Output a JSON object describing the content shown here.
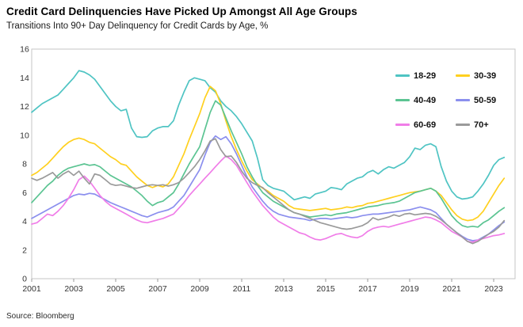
{
  "header": {
    "title": "Credit Card Delinquencies Have Picked Up Amongst All Age Groups",
    "subtitle": "Transitions Into 90+ Day Delinquency for Credit Cards by Age, %"
  },
  "source": "Source: Bloomberg",
  "chart_data": {
    "type": "line",
    "title": "Credit Card Delinquencies Have Picked Up Amongst All Age Groups",
    "subtitle": "Transitions Into 90+ Day Delinquency for Credit Cards by Age, %",
    "xlabel": "",
    "ylabel": "%",
    "x_start": 2001,
    "x_step": 0.25,
    "x_end": 2023.5,
    "xlim": [
      2001,
      2024
    ],
    "ylim": [
      0,
      16
    ],
    "y_ticks": [
      0,
      2,
      4,
      6,
      8,
      10,
      12,
      14,
      16
    ],
    "x_tick_labels": [
      2001,
      2003,
      2005,
      2007,
      2009,
      2011,
      2013,
      2015,
      2017,
      2019,
      2021,
      2023
    ],
    "grid": false,
    "legend_position": "top-right",
    "series": [
      {
        "name": "18-29",
        "color": "#4FC4C3",
        "values": [
          11.6,
          11.9,
          12.2,
          12.4,
          12.6,
          12.8,
          13.2,
          13.6,
          14.0,
          14.5,
          14.4,
          14.2,
          13.9,
          13.4,
          12.9,
          12.4,
          12.0,
          11.7,
          11.8,
          10.5,
          9.9,
          9.85,
          9.9,
          10.3,
          10.5,
          10.6,
          10.6,
          11.0,
          12.1,
          13.0,
          13.8,
          14.0,
          13.9,
          13.8,
          13.3,
          13.0,
          12.4,
          12.0,
          11.7,
          11.3,
          10.8,
          10.2,
          9.6,
          8.4,
          6.9,
          6.5,
          6.3,
          6.2,
          6.1,
          5.8,
          5.5,
          5.6,
          5.7,
          5.6,
          5.9,
          6.0,
          6.1,
          6.35,
          6.3,
          6.2,
          6.6,
          6.8,
          7.0,
          7.1,
          7.4,
          7.55,
          7.3,
          7.6,
          7.8,
          7.7,
          7.9,
          8.1,
          8.5,
          9.1,
          9.0,
          9.3,
          9.4,
          9.2,
          7.8,
          6.8,
          6.1,
          5.7,
          5.55,
          5.6,
          5.7,
          6.1,
          6.6,
          7.2,
          7.9,
          8.3,
          8.45
        ]
      },
      {
        "name": "30-39",
        "color": "#FFD01F",
        "values": [
          7.2,
          7.4,
          7.7,
          8.0,
          8.4,
          8.8,
          9.2,
          9.5,
          9.7,
          9.8,
          9.7,
          9.5,
          9.4,
          9.1,
          8.8,
          8.5,
          8.3,
          8.0,
          7.9,
          7.5,
          7.1,
          6.8,
          6.5,
          6.35,
          6.5,
          6.4,
          6.6,
          7.1,
          7.9,
          8.7,
          9.7,
          10.6,
          11.5,
          12.6,
          13.4,
          13.1,
          12.2,
          11.0,
          9.9,
          9.0,
          8.2,
          7.5,
          6.9,
          6.6,
          6.3,
          6.1,
          5.8,
          5.6,
          5.4,
          5.1,
          4.9,
          4.85,
          4.8,
          4.75,
          4.8,
          4.85,
          4.9,
          4.8,
          4.85,
          4.9,
          5.0,
          4.95,
          5.05,
          5.1,
          5.25,
          5.3,
          5.4,
          5.5,
          5.6,
          5.7,
          5.8,
          5.9,
          6.0,
          6.05,
          6.1,
          6.2,
          6.3,
          6.1,
          5.8,
          5.3,
          4.8,
          4.4,
          4.15,
          4.05,
          4.1,
          4.3,
          4.7,
          5.3,
          5.9,
          6.5,
          7.0
        ]
      },
      {
        "name": "40-49",
        "color": "#5BC492",
        "values": [
          5.3,
          5.7,
          6.1,
          6.5,
          6.8,
          7.2,
          7.5,
          7.7,
          7.8,
          7.9,
          8.0,
          7.9,
          7.95,
          7.8,
          7.5,
          7.2,
          7.0,
          6.8,
          6.6,
          6.4,
          6.1,
          5.8,
          5.4,
          5.1,
          5.3,
          5.4,
          5.7,
          6.0,
          6.6,
          7.3,
          8.0,
          8.6,
          9.2,
          10.4,
          11.6,
          12.4,
          12.1,
          11.2,
          10.3,
          9.5,
          8.7,
          7.8,
          7.1,
          6.5,
          6.0,
          5.7,
          5.4,
          5.2,
          5.0,
          4.8,
          4.6,
          4.5,
          4.4,
          4.3,
          4.35,
          4.4,
          4.45,
          4.4,
          4.5,
          4.55,
          4.6,
          4.7,
          4.8,
          4.9,
          5.0,
          5.05,
          5.1,
          5.2,
          5.25,
          5.3,
          5.4,
          5.6,
          5.8,
          6.0,
          6.1,
          6.2,
          6.3,
          6.1,
          5.6,
          5.0,
          4.4,
          4.0,
          3.7,
          3.6,
          3.65,
          3.6,
          3.9,
          4.1,
          4.4,
          4.7,
          4.95
        ]
      },
      {
        "name": "50-59",
        "color": "#8B8FEE",
        "values": [
          4.2,
          4.4,
          4.6,
          4.8,
          5.0,
          5.2,
          5.4,
          5.6,
          5.8,
          5.9,
          5.85,
          5.95,
          5.9,
          5.7,
          5.5,
          5.3,
          5.15,
          5.0,
          4.85,
          4.7,
          4.55,
          4.4,
          4.3,
          4.45,
          4.6,
          4.7,
          4.8,
          5.0,
          5.4,
          5.8,
          6.4,
          7.0,
          7.6,
          8.6,
          9.5,
          9.95,
          9.7,
          9.9,
          9.4,
          8.7,
          7.9,
          7.1,
          6.4,
          5.9,
          5.4,
          5.0,
          4.7,
          4.5,
          4.4,
          4.3,
          4.25,
          4.2,
          4.15,
          4.05,
          4.15,
          4.2,
          4.2,
          4.15,
          4.2,
          4.25,
          4.3,
          4.25,
          4.3,
          4.4,
          4.45,
          4.5,
          4.5,
          4.55,
          4.6,
          4.65,
          4.7,
          4.75,
          4.8,
          4.9,
          5.0,
          4.9,
          4.8,
          4.6,
          4.2,
          3.8,
          3.5,
          3.2,
          2.95,
          2.75,
          2.65,
          2.7,
          2.9,
          3.1,
          3.4,
          3.7,
          3.95
        ]
      },
      {
        "name": "60-69",
        "color": "#F07DE8",
        "values": [
          3.8,
          3.9,
          4.2,
          4.5,
          4.4,
          4.7,
          5.1,
          5.6,
          6.2,
          6.9,
          7.15,
          6.8,
          6.3,
          5.8,
          5.4,
          5.1,
          4.9,
          4.7,
          4.5,
          4.3,
          4.1,
          3.95,
          3.9,
          4.0,
          4.1,
          4.2,
          4.35,
          4.5,
          4.9,
          5.3,
          5.8,
          6.2,
          6.6,
          7.0,
          7.4,
          7.8,
          8.2,
          8.55,
          8.3,
          7.9,
          7.3,
          6.7,
          6.1,
          5.6,
          5.1,
          4.7,
          4.3,
          4.0,
          3.8,
          3.6,
          3.4,
          3.2,
          3.1,
          2.9,
          2.75,
          2.7,
          2.8,
          2.95,
          3.1,
          3.15,
          3.0,
          2.9,
          2.85,
          3.0,
          3.3,
          3.5,
          3.6,
          3.65,
          3.6,
          3.7,
          3.8,
          3.9,
          4.0,
          4.1,
          4.2,
          4.3,
          4.25,
          4.1,
          3.9,
          3.6,
          3.3,
          3.1,
          2.9,
          2.6,
          2.55,
          2.7,
          2.8,
          2.9,
          3.0,
          3.05,
          3.15
        ]
      },
      {
        "name": "70+",
        "color": "#9A9A9A",
        "values": [
          7.0,
          6.85,
          7.0,
          7.2,
          7.4,
          7.0,
          7.3,
          7.5,
          7.2,
          7.5,
          7.0,
          6.6,
          7.3,
          7.2,
          6.9,
          6.6,
          6.5,
          6.55,
          6.45,
          6.35,
          6.3,
          6.4,
          6.5,
          6.55,
          6.5,
          6.55,
          6.45,
          6.55,
          6.7,
          7.0,
          7.4,
          7.8,
          8.3,
          8.9,
          9.6,
          9.75,
          9.0,
          8.5,
          8.55,
          8.1,
          7.5,
          7.0,
          6.7,
          6.5,
          6.35,
          6.0,
          5.7,
          5.4,
          5.1,
          4.8,
          4.6,
          4.5,
          4.35,
          4.2,
          4.05,
          3.9,
          3.8,
          3.7,
          3.6,
          3.5,
          3.45,
          3.5,
          3.6,
          3.7,
          3.9,
          4.25,
          4.1,
          4.2,
          4.3,
          4.45,
          4.35,
          4.5,
          4.55,
          4.45,
          4.5,
          4.55,
          4.5,
          4.35,
          4.1,
          3.8,
          3.5,
          3.2,
          2.9,
          2.6,
          2.45,
          2.6,
          2.85,
          3.1,
          3.3,
          3.6,
          4.05
        ]
      }
    ]
  }
}
